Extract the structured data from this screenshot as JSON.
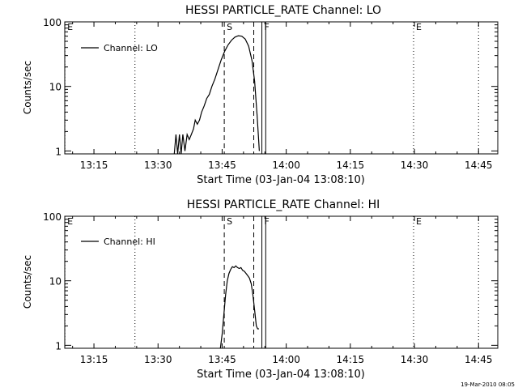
{
  "footer_stamp": "19-Mar-2010 08:05",
  "chart_data": [
    {
      "type": "line",
      "title": "HESSI PARTICLE_RATE Channel: LO",
      "xlabel": "Start Time (03-Jan-04 13:08:10)",
      "ylabel": "Counts/sec",
      "x_unit": "minutes after 13:00",
      "xlim": [
        8.17,
        109.5
      ],
      "ylim": [
        0.9,
        100
      ],
      "yscale": "log",
      "x_ticks": [
        {
          "x": 15,
          "label": "13:15"
        },
        {
          "x": 30,
          "label": "13:30"
        },
        {
          "x": 45,
          "label": "13:45"
        },
        {
          "x": 60,
          "label": "14:00"
        },
        {
          "x": 75,
          "label": "14:15"
        },
        {
          "x": 90,
          "label": "14:30"
        },
        {
          "x": 105,
          "label": "14:45"
        }
      ],
      "y_ticks": [
        {
          "y": 1,
          "label": "1"
        },
        {
          "y": 10,
          "label": "10"
        },
        {
          "y": 100,
          "label": "100"
        }
      ],
      "markers": [
        {
          "x": 8.2,
          "style": "dotted",
          "label": "E"
        },
        {
          "x": 24.6,
          "style": "dotted",
          "label": ""
        },
        {
          "x": 45.5,
          "style": "dashed",
          "label": "S"
        },
        {
          "x": 52.4,
          "style": "dashed",
          "label": ""
        },
        {
          "x": 54.3,
          "style": "solid",
          "label": "F"
        },
        {
          "x": 55.2,
          "style": "solid",
          "label": ""
        },
        {
          "x": 89.8,
          "style": "dotted",
          "label": "E"
        },
        {
          "x": 105.0,
          "style": "dotted",
          "label": ""
        }
      ],
      "series": [
        {
          "name": "Channel: LO",
          "x": [
            33.8,
            34.2,
            34.6,
            35.0,
            35.4,
            35.8,
            36.3,
            36.8,
            37.3,
            37.8,
            38.3,
            38.7,
            39.2,
            39.7,
            40.2,
            40.8,
            41.4,
            42.0,
            42.6,
            43.3,
            44.0,
            44.8,
            45.6,
            46.4,
            47.2,
            48.0,
            48.8,
            49.6,
            50.4,
            51.2,
            52.0,
            52.6,
            53.2,
            53.7
          ],
          "y": [
            0.9,
            1.8,
            0.9,
            1.8,
            0.9,
            1.8,
            1.0,
            1.8,
            1.5,
            1.8,
            2.2,
            3.0,
            2.6,
            3.0,
            4.0,
            5.0,
            6.5,
            7.5,
            10.0,
            13.0,
            18.0,
            26.0,
            35.0,
            44.0,
            52.0,
            58.0,
            61.0,
            60.0,
            54.0,
            42.0,
            25.0,
            12.0,
            3.5,
            1.0
          ]
        }
      ],
      "legend_position": "top-left"
    },
    {
      "type": "line",
      "title": "HESSI PARTICLE_RATE Channel: HI",
      "xlabel": "Start Time (03-Jan-04 13:08:10)",
      "ylabel": "Counts/sec",
      "x_unit": "minutes after 13:00",
      "xlim": [
        8.17,
        109.5
      ],
      "ylim": [
        0.9,
        100
      ],
      "yscale": "log",
      "x_ticks": [
        {
          "x": 15,
          "label": "13:15"
        },
        {
          "x": 30,
          "label": "13:30"
        },
        {
          "x": 45,
          "label": "13:45"
        },
        {
          "x": 60,
          "label": "14:00"
        },
        {
          "x": 75,
          "label": "14:15"
        },
        {
          "x": 90,
          "label": "14:30"
        },
        {
          "x": 105,
          "label": "14:45"
        }
      ],
      "y_ticks": [
        {
          "y": 1,
          "label": "1"
        },
        {
          "y": 10,
          "label": "10"
        },
        {
          "y": 100,
          "label": "100"
        }
      ],
      "markers": [
        {
          "x": 8.2,
          "style": "dotted",
          "label": "E"
        },
        {
          "x": 24.6,
          "style": "dotted",
          "label": ""
        },
        {
          "x": 45.5,
          "style": "dashed",
          "label": "S"
        },
        {
          "x": 52.4,
          "style": "dashed",
          "label": ""
        },
        {
          "x": 54.3,
          "style": "solid",
          "label": "F"
        },
        {
          "x": 55.2,
          "style": "solid",
          "label": ""
        },
        {
          "x": 89.8,
          "style": "dotted",
          "label": "E"
        },
        {
          "x": 105.0,
          "style": "dotted",
          "label": ""
        }
      ],
      "series": [
        {
          "name": "Channel: HI",
          "x": [
            44.6,
            45.0,
            45.4,
            45.8,
            46.2,
            46.6,
            47.0,
            47.4,
            47.8,
            48.2,
            48.6,
            49.0,
            49.4,
            49.8,
            50.2,
            50.6,
            51.0,
            51.4,
            51.8,
            52.2,
            52.6,
            53.0,
            53.3,
            53.6
          ],
          "y": [
            0.9,
            1.5,
            3.0,
            6.0,
            10.0,
            13.0,
            15.0,
            16.5,
            16.0,
            17.0,
            16.0,
            15.5,
            16.0,
            14.5,
            14.0,
            13.0,
            12.0,
            11.0,
            9.0,
            6.0,
            3.5,
            2.0,
            1.8,
            1.8
          ]
        }
      ],
      "legend_position": "top-left"
    }
  ]
}
